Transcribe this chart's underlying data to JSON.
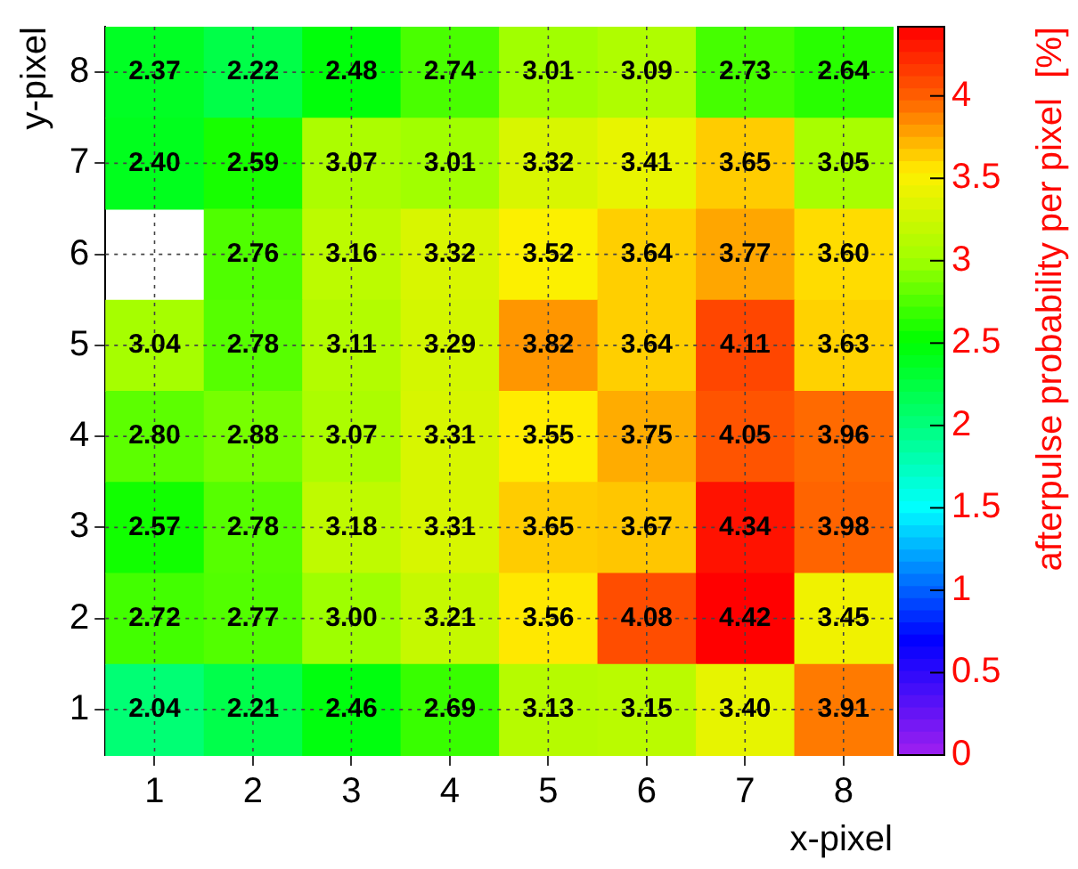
{
  "chart_data": {
    "type": "heatmap",
    "xlabel": "x-pixel",
    "ylabel": "y-pixel",
    "clabel": "afterpulse probability per pixel  [%]",
    "categories": [
      "1",
      "2",
      "3",
      "4",
      "5",
      "6",
      "7",
      "8"
    ],
    "y_categories": [
      "8",
      "7",
      "6",
      "5",
      "4",
      "3",
      "2",
      "1"
    ],
    "cells": [
      [
        2.37,
        2.22,
        2.48,
        2.74,
        3.01,
        3.09,
        2.73,
        2.64
      ],
      [
        2.4,
        2.59,
        3.07,
        3.01,
        3.32,
        3.41,
        3.65,
        3.05
      ],
      [
        null,
        2.76,
        3.16,
        3.32,
        3.52,
        3.64,
        3.77,
        3.6
      ],
      [
        3.04,
        2.78,
        3.11,
        3.29,
        3.82,
        3.64,
        4.11,
        3.63
      ],
      [
        2.8,
        2.88,
        3.07,
        3.31,
        3.55,
        3.75,
        4.05,
        3.96
      ],
      [
        2.57,
        2.78,
        3.18,
        3.31,
        3.65,
        3.67,
        4.34,
        3.98
      ],
      [
        2.72,
        2.77,
        3.0,
        3.21,
        3.56,
        4.08,
        4.42,
        3.45
      ],
      [
        2.04,
        2.21,
        2.46,
        2.69,
        3.13,
        3.15,
        3.4,
        3.91
      ]
    ],
    "cell_labels": [
      [
        "2.37",
        "2.22",
        "2.48",
        "2.74",
        "3.01",
        "3.09",
        "2.73",
        "2.64"
      ],
      [
        "2.40",
        "2.59",
        "3.07",
        "3.01",
        "3.32",
        "3.41",
        "3.65",
        "3.05"
      ],
      [
        null,
        "2.76",
        "3.16",
        "3.32",
        "3.52",
        "3.64",
        "3.77",
        "3.60"
      ],
      [
        "3.04",
        "2.78",
        "3.11",
        "3.29",
        "3.82",
        "3.64",
        "4.11",
        "3.63"
      ],
      [
        "2.80",
        "2.88",
        "3.07",
        "3.31",
        "3.55",
        "3.75",
        "4.05",
        "3.96"
      ],
      [
        "2.57",
        "2.78",
        "3.18",
        "3.31",
        "3.65",
        "3.67",
        "4.34",
        "3.98"
      ],
      [
        "2.72",
        "2.77",
        "3.00",
        "3.21",
        "3.56",
        "4.08",
        "4.42",
        "3.45"
      ],
      [
        "2.04",
        "2.21",
        "2.46",
        "2.69",
        "3.13",
        "3.15",
        "3.40",
        "3.91"
      ]
    ],
    "clim": [
      0,
      4.42
    ],
    "cticks": [
      0,
      0.5,
      1,
      1.5,
      2,
      2.5,
      3,
      3.5,
      4
    ],
    "grid": true
  }
}
